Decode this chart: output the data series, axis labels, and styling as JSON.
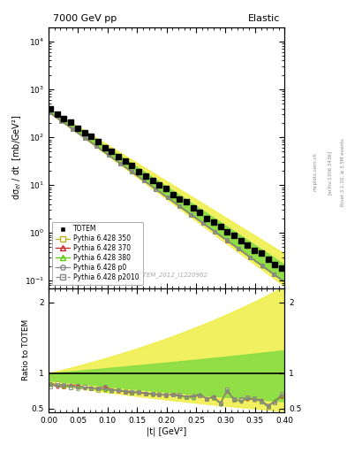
{
  "title_left": "7000 GeV pp",
  "title_right": "Elastic",
  "xlabel": "|t| [GeV²]",
  "ylabel_main": "dσ$_{el}$ / dt  [mb/GeV²]",
  "ylabel_ratio": "Ratio to TOTEM",
  "watermark": "TOTEM_2012_I1220962",
  "rivet_label": "Rivet 3.1.10, ≥ 3.5M events",
  "arxiv_label": "[arXiv:1306.3436]",
  "mcplots_label": "mcplots.cern.ch",
  "xlim": [
    0.0,
    0.4
  ],
  "ylim_main": [
    0.07,
    20000
  ],
  "ylim_ratio": [
    0.45,
    2.2
  ],
  "ratio_yticks": [
    0.5,
    1.0,
    2.0
  ],
  "totem_color": "#000000",
  "color_350": "#b8b020",
  "color_370": "#cc2222",
  "color_380": "#55cc00",
  "color_p0": "#888888",
  "color_p2010": "#888888",
  "band_yellow": "#eeee44",
  "band_green": "#88dd44",
  "n_totem": 35,
  "n_mc": 100
}
